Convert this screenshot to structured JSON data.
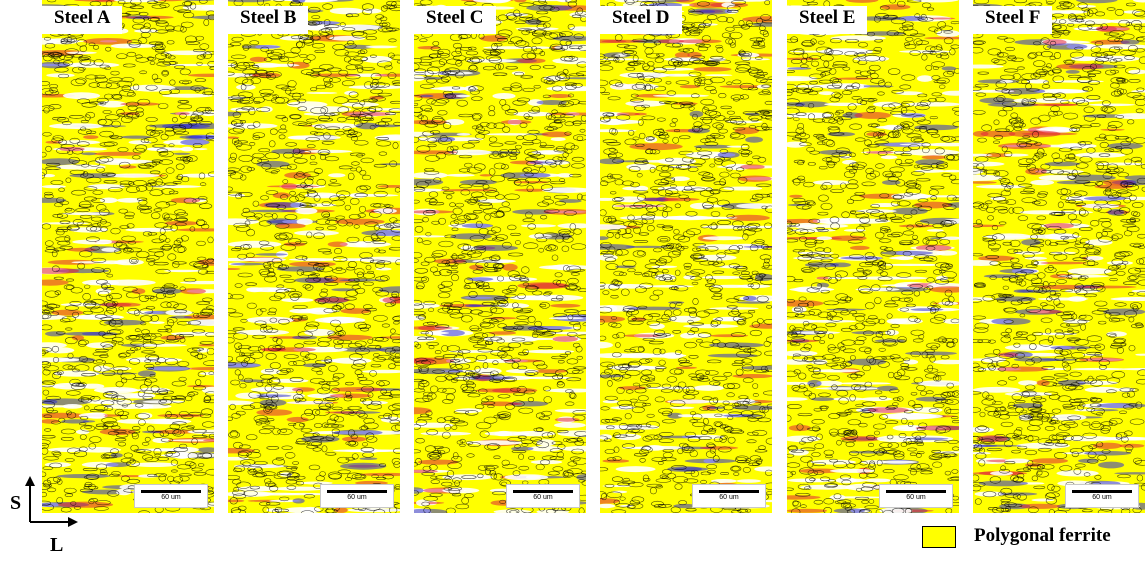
{
  "panels": [
    {
      "title": "Steel A",
      "scale": "60 um"
    },
    {
      "title": "Steel B",
      "scale": "60 um"
    },
    {
      "title": "Steel C",
      "scale": "60 um"
    },
    {
      "title": "Steel D",
      "scale": "60 um"
    },
    {
      "title": "Steel E",
      "scale": "60 um"
    },
    {
      "title": "Steel F",
      "scale": "60 um"
    }
  ],
  "axes": {
    "vertical": "S",
    "horizontal": "L"
  },
  "legend": {
    "label": "Polygonal ferrite",
    "color": "#ffff00"
  },
  "colors": {
    "ferrite": "#ffff00",
    "boundary": "#000000",
    "other_phase": "#ffffff",
    "misorientation_red": "#e0203a",
    "misorientation_blue": "#3030d0"
  }
}
